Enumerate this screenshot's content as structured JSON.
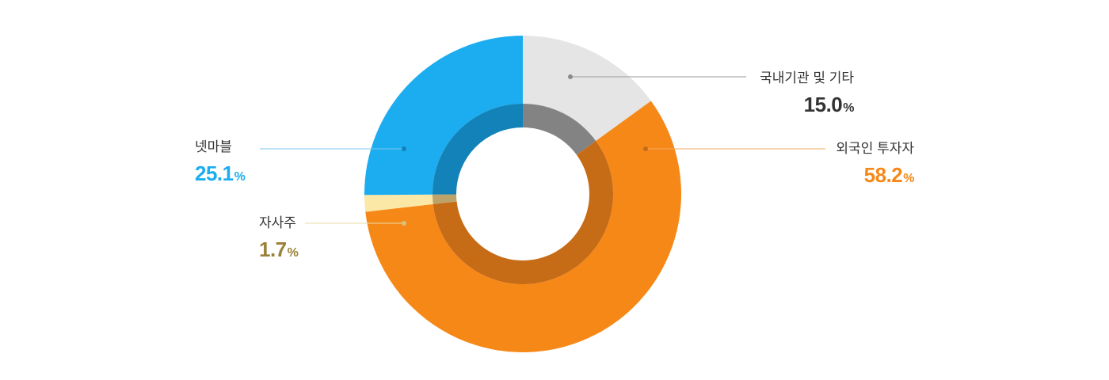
{
  "chart_data": {
    "type": "pie",
    "style": "donut",
    "slices": [
      {
        "label": "국내기관 및 기타",
        "value": 15.0,
        "value_text": "15.0",
        "unit": "%",
        "color": "#e5e5e5",
        "label_color": "#333333"
      },
      {
        "label": "외국인 투자자",
        "value": 58.2,
        "value_text": "58.2",
        "unit": "%",
        "color": "#f68818",
        "label_color": "#f68818"
      },
      {
        "label": "자사주",
        "value": 1.7,
        "value_text": "1.7",
        "unit": "%",
        "color": "#fbe8a6",
        "label_color": "#9a8038"
      },
      {
        "label": "넷마블",
        "value": 25.1,
        "value_text": "25.1",
        "unit": "%",
        "color": "#1badf0",
        "label_color": "#1badf0"
      }
    ],
    "inner_ring_colors": [
      "#838383",
      "#c66b16",
      "#bba36a",
      "#1282b8"
    ]
  }
}
